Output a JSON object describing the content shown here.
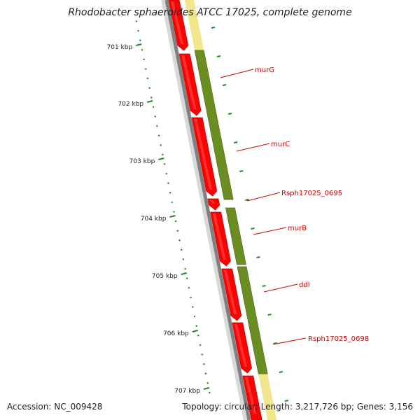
{
  "title": "Rhodobacter sphaeroides ATCC 17025, complete genome",
  "footer": {
    "accession": "Accession: NC_009428",
    "summary": "Topology: circular; Length: 3,217,726 bp; Genes: 3,156"
  },
  "colors": {
    "backbone": "#888888",
    "gene_red": "#ff0000",
    "gene_green": "#6b8e23",
    "feature_yellow": "#f0e68c",
    "ticks": "#228b22",
    "label": "#cc0000"
  },
  "chart_data": {
    "type": "genome-map",
    "topology": "circular",
    "ruler": {
      "unit": "kbp",
      "labels": [
        "701 kbp",
        "702 kbp",
        "703 kbp",
        "704 kbp",
        "705 kbp",
        "706 kbp",
        "707 kbp"
      ]
    },
    "genes": [
      {
        "name": "murG"
      },
      {
        "name": "murC"
      },
      {
        "name": "Rsph17025_0695"
      },
      {
        "name": "murB"
      },
      {
        "name": "ddl"
      },
      {
        "name": "Rsph17025_0698"
      }
    ]
  }
}
